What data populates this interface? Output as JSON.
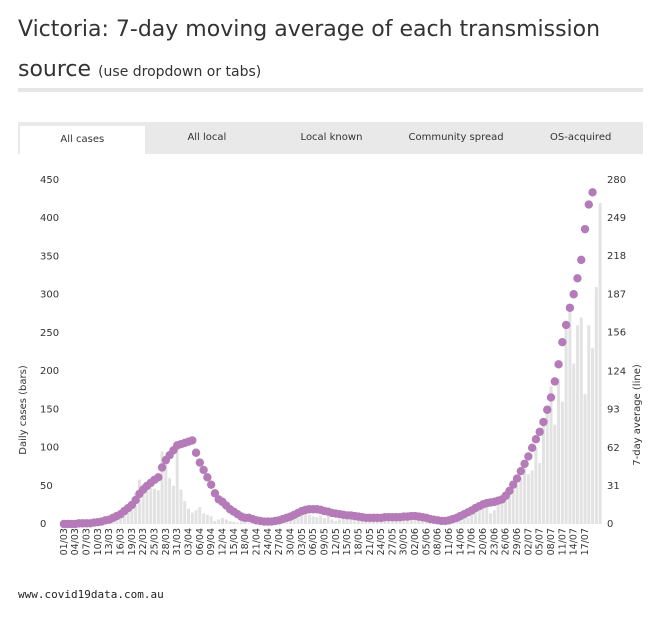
{
  "header": {
    "title_main": "Victoria: 7-day moving average of each transmission source",
    "title_sub": "(use dropdown or tabs)"
  },
  "tabs": [
    {
      "label": "All cases",
      "active": true
    },
    {
      "label": "All local",
      "active": false
    },
    {
      "label": "Local known",
      "active": false
    },
    {
      "label": "Community spread",
      "active": false
    },
    {
      "label": "OS-acquired",
      "active": false
    }
  ],
  "footer": {
    "source": "www.covid19data.com.au"
  },
  "chart_data": {
    "type": "bar+line",
    "ylabel_left": "Daily cases (bars)",
    "ylabel_right": "7-day average (line)",
    "ylim_left": [
      0,
      450
    ],
    "yticks_left": [
      0,
      50,
      100,
      150,
      200,
      250,
      300,
      350,
      400,
      450
    ],
    "ylim_right": [
      0,
      280
    ],
    "yticks_right": [
      0,
      31,
      62,
      93,
      124,
      156,
      187,
      218,
      249,
      280
    ],
    "x_tick_labels": [
      "01/03",
      "04/03",
      "07/03",
      "10/03",
      "13/03",
      "16/03",
      "19/03",
      "22/03",
      "25/03",
      "28/03",
      "31/03",
      "03/04",
      "06/04",
      "09/04",
      "12/04",
      "15/04",
      "18/04",
      "21/04",
      "24/04",
      "27/04",
      "30/04",
      "03/05",
      "06/05",
      "09/05",
      "12/05",
      "15/05",
      "18/05",
      "21/05",
      "24/05",
      "27/05",
      "30/05",
      "02/06",
      "05/06",
      "08/06",
      "11/06",
      "14/06",
      "17/06",
      "20/06",
      "23/06",
      "26/06",
      "29/06",
      "02/07",
      "05/07",
      "08/07",
      "11/07",
      "14/07",
      "17/07"
    ],
    "x_tick_every": 3,
    "bar_color": "#e2e2e2",
    "line_color": "#b57ab8",
    "series": [
      {
        "name": "Daily cases",
        "axis": "left",
        "values": [
          0,
          1,
          0,
          0,
          2,
          0,
          0,
          0,
          3,
          2,
          4,
          6,
          5,
          8,
          10,
          12,
          16,
          22,
          24,
          40,
          58,
          52,
          50,
          48,
          46,
          44,
          95,
          80,
          60,
          50,
          100,
          45,
          30,
          20,
          15,
          18,
          22,
          14,
          12,
          10,
          4,
          6,
          8,
          6,
          4,
          3,
          2,
          5,
          3,
          1,
          2,
          1,
          2,
          3,
          4,
          2,
          6,
          3,
          5,
          7,
          10,
          12,
          14,
          18,
          16,
          12,
          10,
          9,
          11,
          8,
          12,
          6,
          4,
          6,
          7,
          5,
          8,
          6,
          5,
          4,
          3,
          7,
          4,
          5,
          6,
          7,
          3,
          4,
          5,
          3,
          8,
          6,
          10,
          5,
          6,
          7,
          4,
          3,
          2,
          1,
          2,
          1,
          4,
          6,
          8,
          10,
          12,
          8,
          14,
          16,
          18,
          20,
          22,
          14,
          18,
          25,
          30,
          35,
          40,
          45,
          50,
          60,
          75,
          65,
          70,
          100,
          80,
          130,
          150,
          180,
          130,
          190,
          160,
          260,
          280,
          210,
          260,
          270,
          170,
          260,
          230,
          310,
          420
        ]
      },
      {
        "name": "7-day average",
        "axis": "right",
        "values": [
          0,
          0,
          0,
          0,
          0.5,
          0.5,
          0.6,
          0.6,
          1.2,
          1.5,
          2,
          3,
          3.5,
          5,
          6.5,
          8,
          10.5,
          13,
          15.5,
          19.5,
          24.5,
          28,
          31,
          33.5,
          36,
          38,
          46,
          52,
          56,
          60,
          64,
          65,
          66,
          67,
          68,
          58,
          50,
          44,
          38,
          32,
          25,
          20,
          18,
          15,
          12,
          10,
          8,
          6,
          5,
          5,
          4,
          3,
          2.5,
          2,
          2,
          2,
          2.5,
          3,
          4,
          5,
          6,
          7.5,
          9,
          10.5,
          11.5,
          12,
          12,
          12,
          11.5,
          10.5,
          10,
          9,
          8.5,
          8,
          7.5,
          7,
          7,
          6.5,
          6,
          5.5,
          5,
          5,
          5,
          5,
          5,
          5.5,
          5.5,
          5.5,
          5.5,
          5.5,
          6,
          6,
          6.5,
          6.5,
          6,
          5.5,
          5,
          4,
          3.5,
          3,
          2.5,
          2.5,
          3,
          4,
          5,
          6.5,
          8,
          9.5,
          11,
          13,
          14.5,
          16,
          17,
          17.5,
          18,
          19,
          20,
          23,
          27,
          32,
          37,
          43,
          49,
          55,
          62,
          69,
          75,
          83,
          93,
          103,
          116,
          130,
          148,
          162,
          176,
          187,
          200,
          215,
          240,
          260,
          270
        ]
      }
    ]
  }
}
